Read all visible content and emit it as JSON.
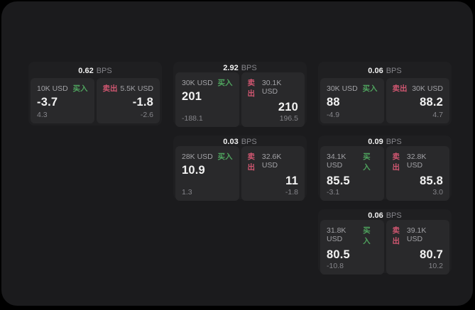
{
  "colors": {
    "page_bg": "#000000",
    "container_bg": "#1b1b1d",
    "card_bg": "#1f1f21",
    "panel_bg": "#29292b",
    "text_primary": "#f2f2f2",
    "text_secondary": "#a2a2a6",
    "text_muted": "#85858a",
    "buy_green": "#4fa35e",
    "sell_red": "#cf5670"
  },
  "labels": {
    "bps_suffix": "BPS",
    "buy": "买入",
    "sell": "卖出"
  },
  "cards": [
    {
      "bps": "0.62",
      "buy": {
        "size": "10K USD",
        "value": "-3.7",
        "delta": "4.3"
      },
      "sell": {
        "size": "5.5K USD",
        "value": "-1.8",
        "delta": "-2.6"
      }
    },
    {
      "bps": "2.92",
      "buy": {
        "size": "30K USD",
        "value": "201",
        "delta": "-188.1"
      },
      "sell": {
        "size": "30.1K USD",
        "value": "210",
        "delta": "196.5"
      }
    },
    {
      "bps": "0.06",
      "buy": {
        "size": "30K USD",
        "value": "88",
        "delta": "-4.9"
      },
      "sell": {
        "size": "30K USD",
        "value": "88.2",
        "delta": "4.7"
      }
    },
    {
      "bps": "0.03",
      "buy": {
        "size": "28K USD",
        "value": "10.9",
        "delta": "1.3"
      },
      "sell": {
        "size": "32.6K USD",
        "value": "11",
        "delta": "-1.8"
      }
    },
    {
      "bps": "0.09",
      "buy": {
        "size": "34.1K USD",
        "value": "85.5",
        "delta": "-3.1"
      },
      "sell": {
        "size": "32.8K USD",
        "value": "85.8",
        "delta": "3.0"
      }
    },
    {
      "bps": "0.06",
      "buy": {
        "size": "31.8K USD",
        "value": "80.5",
        "delta": "-10.8"
      },
      "sell": {
        "size": "39.1K USD",
        "value": "80.7",
        "delta": "10.2"
      }
    }
  ]
}
